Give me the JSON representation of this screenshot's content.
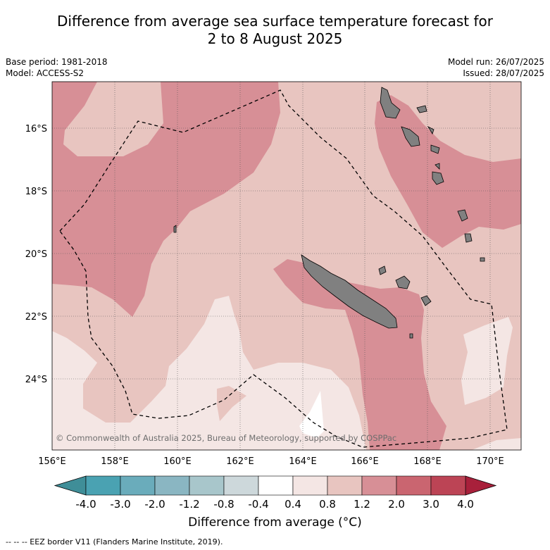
{
  "title_line1": "Difference from average sea surface temperature forecast for",
  "title_line2": "2 to 8 August 2025",
  "meta": {
    "base_period": "Base period: 1981-2018",
    "model": "Model: ACCESS-S2",
    "model_run": "Model run: 26/07/2025",
    "issued": "Issued: 28/07/2025"
  },
  "map": {
    "lat_labels": [
      "16°S",
      "18°S",
      "20°S",
      "22°S",
      "24°S"
    ],
    "lon_labels": [
      "156°E",
      "158°E",
      "160°E",
      "162°E",
      "164°E",
      "166°E",
      "168°E",
      "170°E"
    ],
    "copyright": "© Commonwealth of Australia 2025, Bureau of Meteorology, supported by COSPPac",
    "colors": {
      "land": "#808080",
      "anom_0_4_0_8": "#f4e6e4",
      "anom_0_8_1_2": "#e8c5c0",
      "anom_1_2_2_0": "#d78f96"
    }
  },
  "colorbar": {
    "ticks": [
      "-4.0",
      "-3.0",
      "-2.0",
      "-1.2",
      "-0.8",
      "-0.4",
      "0.4",
      "0.8",
      "1.2",
      "2.0",
      "3.0",
      "4.0"
    ],
    "colors": [
      "#4aa2b2",
      "#6aacbb",
      "#8ab6c2",
      "#a8c6cb",
      "#cdd8db",
      "#ffffff",
      "#f4e6e4",
      "#e8c5c0",
      "#d78f96",
      "#ca6570",
      "#bc4455"
    ],
    "under_color": "#3f8e98",
    "over_color": "#a8203b",
    "label": "Difference from average (°C)"
  },
  "footer": "-- -- -- EEZ border V11 (Flanders Marine Institute, 2019)."
}
